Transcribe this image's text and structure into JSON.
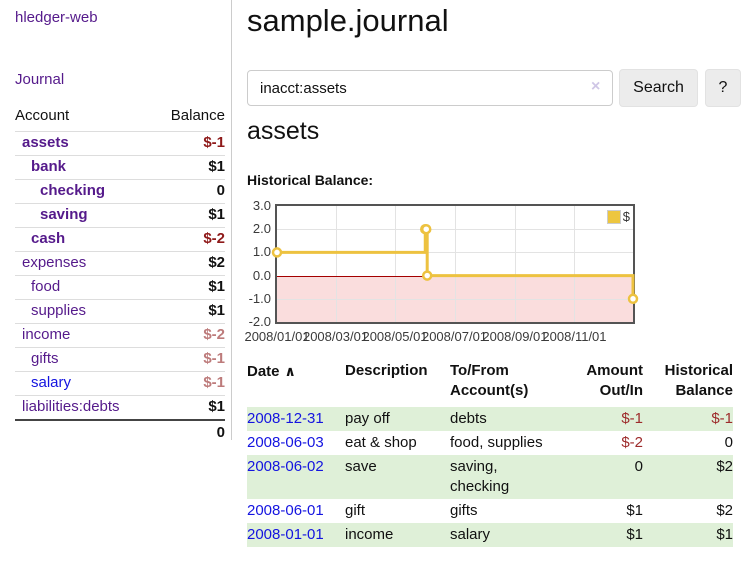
{
  "app": {
    "brand": "hledger-web"
  },
  "sidebar": {
    "journal_link": "Journal",
    "accounts": {
      "header": {
        "account": "Account",
        "balance": "Balance"
      },
      "rows": [
        {
          "name": "assets",
          "balance": "$-1",
          "depth": 0,
          "emph": true,
          "neg": "strong"
        },
        {
          "name": "bank",
          "balance": "$1",
          "depth": 1,
          "emph": true,
          "neg": "none"
        },
        {
          "name": "checking",
          "balance": "0",
          "depth": 2,
          "emph": true,
          "neg": "none"
        },
        {
          "name": "saving",
          "balance": "$1",
          "depth": 2,
          "emph": true,
          "neg": "none"
        },
        {
          "name": "cash",
          "balance": "$-2",
          "depth": 1,
          "emph": true,
          "neg": "strong"
        },
        {
          "name": "expenses",
          "balance": "$2",
          "depth": 0,
          "emph": false,
          "neg": "none"
        },
        {
          "name": "food",
          "balance": "$1",
          "depth": 1,
          "emph": false,
          "neg": "none"
        },
        {
          "name": "supplies",
          "balance": "$1",
          "depth": 1,
          "emph": false,
          "neg": "none"
        },
        {
          "name": "income",
          "balance": "$-2",
          "depth": 0,
          "emph": false,
          "neg": "dim"
        },
        {
          "name": "gifts",
          "balance": "$-1",
          "depth": 1,
          "emph": false,
          "neg": "dim"
        },
        {
          "name": "salary",
          "balance": "$-1",
          "depth": 1,
          "emph": false,
          "neg": "dim",
          "unvisited": true
        },
        {
          "name": "liabilities:debts",
          "balance": "$1",
          "depth": 0,
          "emph": false,
          "neg": "none"
        }
      ],
      "total": "0"
    }
  },
  "main": {
    "title": "sample.journal",
    "search": {
      "value": "inacct:assets",
      "clear_icon": "×",
      "search_button": "Search",
      "help_button": "?"
    },
    "account_heading": "assets",
    "chart_title": "Historical Balance:"
  },
  "register": {
    "sort_icon": "∧",
    "columns": [
      {
        "lines": [
          "Date"
        ],
        "align": "left",
        "sorted": "asc"
      },
      {
        "lines": [
          "Description"
        ],
        "align": "left"
      },
      {
        "lines": [
          "To/From",
          "Account(s)"
        ],
        "align": "left"
      },
      {
        "lines": [
          "Amount",
          "Out/In"
        ],
        "align": "right"
      },
      {
        "lines": [
          "Historical",
          "Balance"
        ],
        "align": "right"
      }
    ],
    "rows": [
      {
        "date": "2008-12-31",
        "description": "pay off",
        "accounts": "debts",
        "amount": "$-1",
        "amount_neg": true,
        "balance": "$-1",
        "balance_neg": true
      },
      {
        "date": "2008-06-03",
        "description": "eat & shop",
        "accounts": "food, supplies",
        "amount": "$-2",
        "amount_neg": true,
        "balance": "0",
        "balance_neg": false
      },
      {
        "date": "2008-06-02",
        "description": "save",
        "accounts": "saving, checking",
        "amount": "0",
        "amount_neg": false,
        "balance": "$2",
        "balance_neg": false
      },
      {
        "date": "2008-06-01",
        "description": "gift",
        "accounts": "gifts",
        "amount": "$1",
        "amount_neg": false,
        "balance": "$2",
        "balance_neg": false
      },
      {
        "date": "2008-01-01",
        "description": "income",
        "accounts": "salary",
        "amount": "$1",
        "amount_neg": false,
        "balance": "$1",
        "balance_neg": false
      }
    ]
  },
  "chart_data": {
    "type": "line",
    "title": "Historical Balance:",
    "step": true,
    "x_range": [
      "2008-01-01",
      "2008-12-31"
    ],
    "ylim": [
      -2,
      3
    ],
    "y_ticks": [
      {
        "v": 3,
        "label": "3.0"
      },
      {
        "v": 2,
        "label": "2.0"
      },
      {
        "v": 1,
        "label": "1.0"
      },
      {
        "v": 0,
        "label": "0.0"
      },
      {
        "v": -1,
        "label": "-1.0"
      },
      {
        "v": -2,
        "label": "-2.0"
      }
    ],
    "x_ticks": [
      {
        "d": "2008-01-01",
        "label": "2008/01/01"
      },
      {
        "d": "2008-03-01",
        "label": "2008/03/01"
      },
      {
        "d": "2008-05-01",
        "label": "2008/05/01"
      },
      {
        "d": "2008-07-01",
        "label": "2008/07/01"
      },
      {
        "d": "2008-09-01",
        "label": "2008/09/01"
      },
      {
        "d": "2008-11-01",
        "label": "2008/11/01"
      }
    ],
    "series": [
      {
        "name": "$",
        "color": "#EDC240",
        "points": [
          [
            "2008-01-01",
            1
          ],
          [
            "2008-06-01",
            2
          ],
          [
            "2008-06-02",
            2
          ],
          [
            "2008-06-03",
            0
          ],
          [
            "2008-12-31",
            -1
          ]
        ]
      }
    ],
    "legend": {
      "label": "$",
      "position": "top-right"
    },
    "grid": true,
    "negative_region": true
  },
  "colors": {
    "link_purple": "#551a8b",
    "link_blue": "#1414e0",
    "negative_strong": "#8e1919",
    "negative_dim": "#bd7b7b",
    "negative_txn": "#9d2b2b",
    "row_alt_green": "#dff0d8",
    "chart_line": "#EDC240",
    "chart_negative_fill": "#fadddd",
    "chart_zero_line": "#a40000"
  }
}
